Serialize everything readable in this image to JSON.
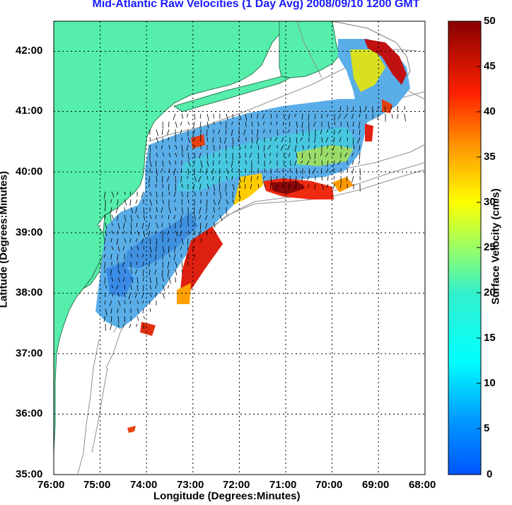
{
  "title": "Mid-Atlantic Raw Velocities (1 Day Avg) 2008/09/10 1200 GMT",
  "map": {
    "xlabel": "Longitude (Degrees:Minutes)",
    "ylabel": "Latitude (Degrees:Minutes)",
    "lon_ticks": [
      "76:00",
      "75:00",
      "74:00",
      "73:00",
      "72:00",
      "71:00",
      "70:00",
      "69:00",
      "68:00"
    ],
    "lat_ticks": [
      "42:00",
      "41:00",
      "40:00",
      "39:00",
      "38:00",
      "37:00",
      "36:00",
      "35:00"
    ],
    "lon_range": [
      -76,
      -68
    ],
    "lat_range": [
      35,
      42.5
    ],
    "land_color": "#55eeaa",
    "coast_color": "#808080"
  },
  "colorbar": {
    "label": "Surface Velocity (cm/s)",
    "ticks": [
      "50",
      "45",
      "40",
      "35",
      "30",
      "25",
      "20",
      "15",
      "10",
      "5",
      "0"
    ],
    "range": [
      0,
      50
    ]
  }
}
